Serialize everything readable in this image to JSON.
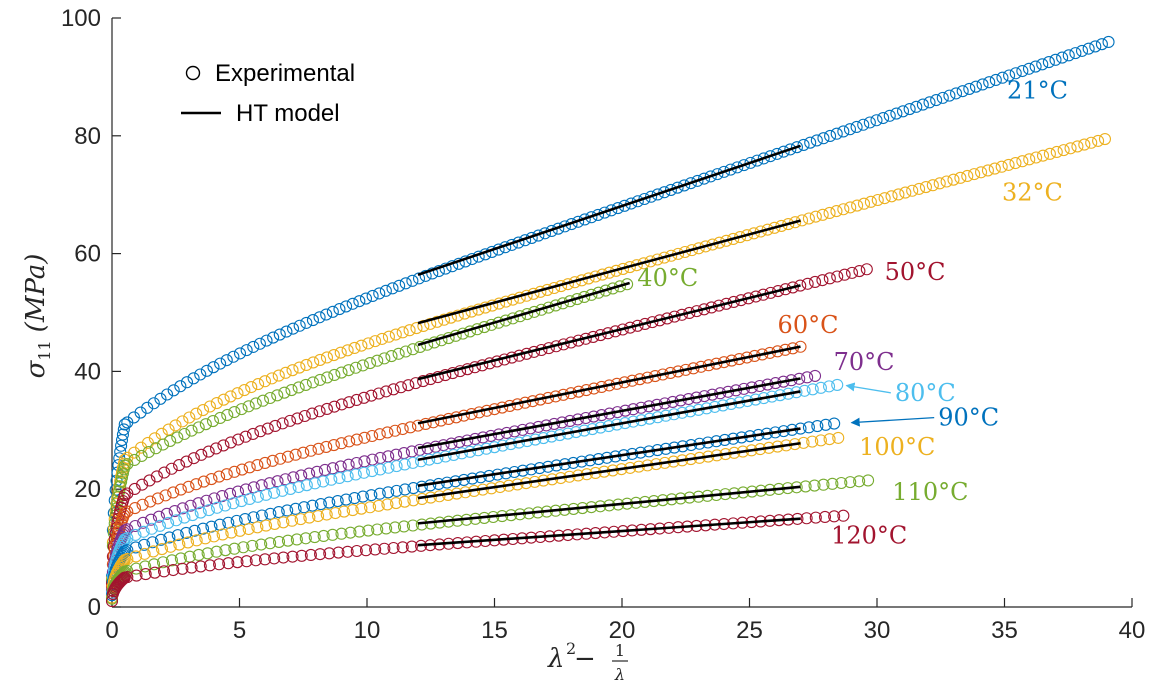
{
  "chart_data": {
    "type": "scatter",
    "xlabel_parts": {
      "var": "λ",
      "exp": "2",
      "minus": " − ",
      "num": "1",
      "den": "λ"
    },
    "ylabel_parts": {
      "sym": "σ",
      "sub": "11",
      "unit": "(MPa)"
    },
    "xlim": [
      0,
      40
    ],
    "ylim": [
      0,
      100
    ],
    "xticks": [
      "0",
      "5",
      "10",
      "15",
      "20",
      "25",
      "30",
      "35",
      "40"
    ],
    "yticks": [
      "0",
      "20",
      "40",
      "60",
      "80",
      "100"
    ],
    "legend": {
      "placement": "top-left",
      "items": [
        {
          "label": "Experimental",
          "marker": "open-circle"
        },
        {
          "label": "HT model",
          "marker": "line"
        }
      ]
    },
    "series": [
      {
        "name": "21°C",
        "label": "21°C",
        "color": "#0072BD",
        "x_end": 39.2,
        "y0": 26,
        "knee": 31,
        "a": 2.2,
        "b": 1.4,
        "fit": [
          [
            12,
            56.4
          ],
          [
            27,
            78.3
          ]
        ]
      },
      {
        "name": "32°C",
        "label": "32°C",
        "color": "#EDB120",
        "x_end": 39.0,
        "y0": 24,
        "knee": 25,
        "a": 1.94,
        "b": 1.5,
        "fit": [
          [
            12,
            48.2
          ],
          [
            27,
            65.6
          ]
        ]
      },
      {
        "name": "40°C",
        "label": "40°C",
        "color": "#77AC30",
        "x_end": 20.3,
        "y0": 22,
        "knee": 24,
        "a": 2.15,
        "b": 1.4,
        "fit": [
          [
            12,
            44.5
          ],
          [
            20.3,
            55.0
          ]
        ]
      },
      {
        "name": "50°C",
        "label": "50°C",
        "color": "#A2142F",
        "x_end": 29.8,
        "y0": 20,
        "knee": 19,
        "a": 1.7,
        "b": 1.2,
        "fit": [
          [
            12,
            38.7
          ],
          [
            27,
            54.6
          ]
        ]
      },
      {
        "name": "60°C",
        "label": "60°C",
        "color": "#D95319",
        "x_end": 27.0,
        "y0": 17,
        "knee": 16,
        "a": 1.47,
        "b": 1.1,
        "fit": [
          [
            12,
            31.2
          ],
          [
            27,
            44.2
          ]
        ]
      },
      {
        "name": "70°C",
        "label": "70°C",
        "color": "#7E2F8E",
        "x_end": 27.8,
        "y0": 14,
        "knee": 13,
        "a": 1.23,
        "b": 1.1,
        "fit": [
          [
            12,
            27.0
          ],
          [
            27,
            38.8
          ]
        ]
      },
      {
        "name": "80°C",
        "label": "80°C",
        "color": "#4DBEEE",
        "x_end": 28.5,
        "y0": 12,
        "knee": 11.5,
        "a": 1.1,
        "b": 1.1,
        "fit": [
          [
            12,
            25.0
          ],
          [
            27,
            36.6
          ]
        ]
      },
      {
        "name": "90°C",
        "label": "90°C",
        "color": "#0072BD",
        "x_end": 28.6,
        "y0": 10,
        "knee": 9.5,
        "a": 0.97,
        "b": 1.1,
        "fit": [
          [
            12,
            20.6
          ],
          [
            27,
            30.3
          ]
        ]
      },
      {
        "name": "100°C",
        "label": "100°C",
        "color": "#EDB120",
        "x_end": 28.7,
        "y0": 8,
        "knee": 8,
        "a": 0.84,
        "b": 1.1,
        "fit": [
          [
            12,
            18.5
          ],
          [
            27,
            27.8
          ]
        ]
      },
      {
        "name": "110°C",
        "label": "110°C",
        "color": "#77AC30",
        "x_end": 29.8,
        "y0": 7,
        "knee": 6,
        "a": 0.65,
        "b": 1.1,
        "fit": [
          [
            12,
            14.2
          ],
          [
            27,
            20.4
          ]
        ]
      },
      {
        "name": "120°C",
        "label": "120°C",
        "color": "#A2142F",
        "x_end": 28.7,
        "y0": 5,
        "knee": 5,
        "a": 0.48,
        "b": 1.0,
        "fit": [
          [
            12,
            10.5
          ],
          [
            27,
            15.0
          ]
        ]
      }
    ],
    "annotations": [
      {
        "series": "21°C",
        "x": 35.1,
        "y": 86.3
      },
      {
        "series": "32°C",
        "x": 34.9,
        "y": 69.0
      },
      {
        "series": "40°C",
        "x": 20.6,
        "y": 54.5
      },
      {
        "series": "50°C",
        "x": 30.3,
        "y": 55.5
      },
      {
        "series": "60°C",
        "x": 26.1,
        "y": 46.5
      },
      {
        "series": "70°C",
        "x": 28.3,
        "y": 40.2
      },
      {
        "series": "80°C",
        "x": 30.7,
        "y": 35.0,
        "arrow_to": [
          28.8,
          37.6
        ]
      },
      {
        "series": "90°C",
        "x": 32.4,
        "y": 30.8,
        "arrow_to": [
          29.0,
          31.3
        ]
      },
      {
        "series": "100°C",
        "x": 29.3,
        "y": 25.8
      },
      {
        "series": "110°C",
        "x": 30.6,
        "y": 18.2
      },
      {
        "series": "120°C",
        "x": 28.2,
        "y": 10.8
      }
    ]
  }
}
